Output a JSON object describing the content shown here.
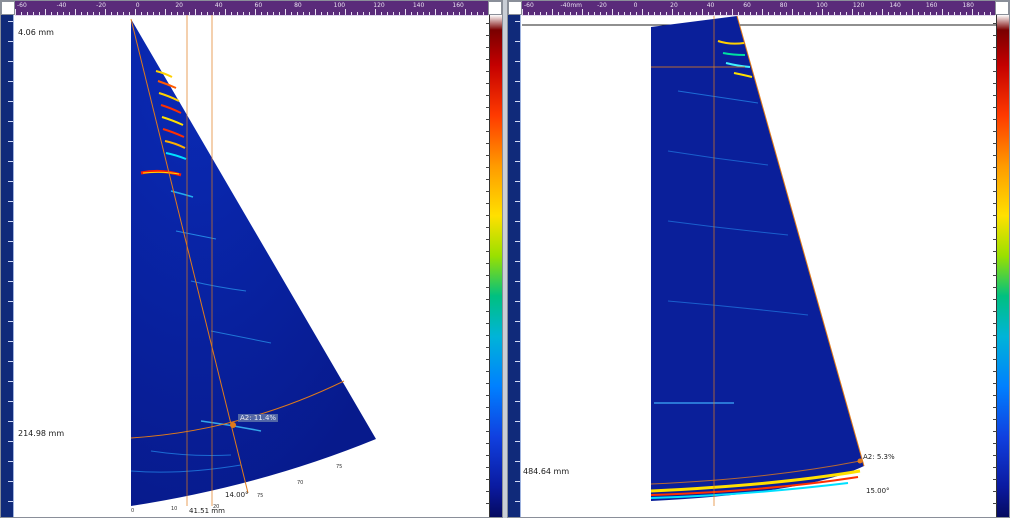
{
  "left_view": {
    "depth_top_readout": "4.06 mm",
    "depth_cursor_readout": "214.98 mm",
    "amplitude_readout": "A2: 11.4%",
    "angle_readout": "14.00°",
    "distance_readout": "41.51 mm",
    "ruler_labels": [
      "-60",
      "-40",
      "-20",
      "0",
      "20",
      "40",
      "60",
      "80",
      "100",
      "120",
      "140",
      "160"
    ]
  },
  "right_view": {
    "depth_cursor_readout": "484.64 mm",
    "amplitude_readout": "A2: 5.3%",
    "angle_readout": "15.00°",
    "ruler_labels": [
      "-60",
      "-40mm",
      "-20",
      "0",
      "20",
      "40",
      "60",
      "80",
      "100",
      "120",
      "140",
      "160",
      "180"
    ]
  },
  "colors": {
    "ruler_bg": "#5a2b7a",
    "vruler_bg": "#102a7a",
    "scan_bg": "#0a1f9a",
    "cursor": "#e07a1a"
  }
}
